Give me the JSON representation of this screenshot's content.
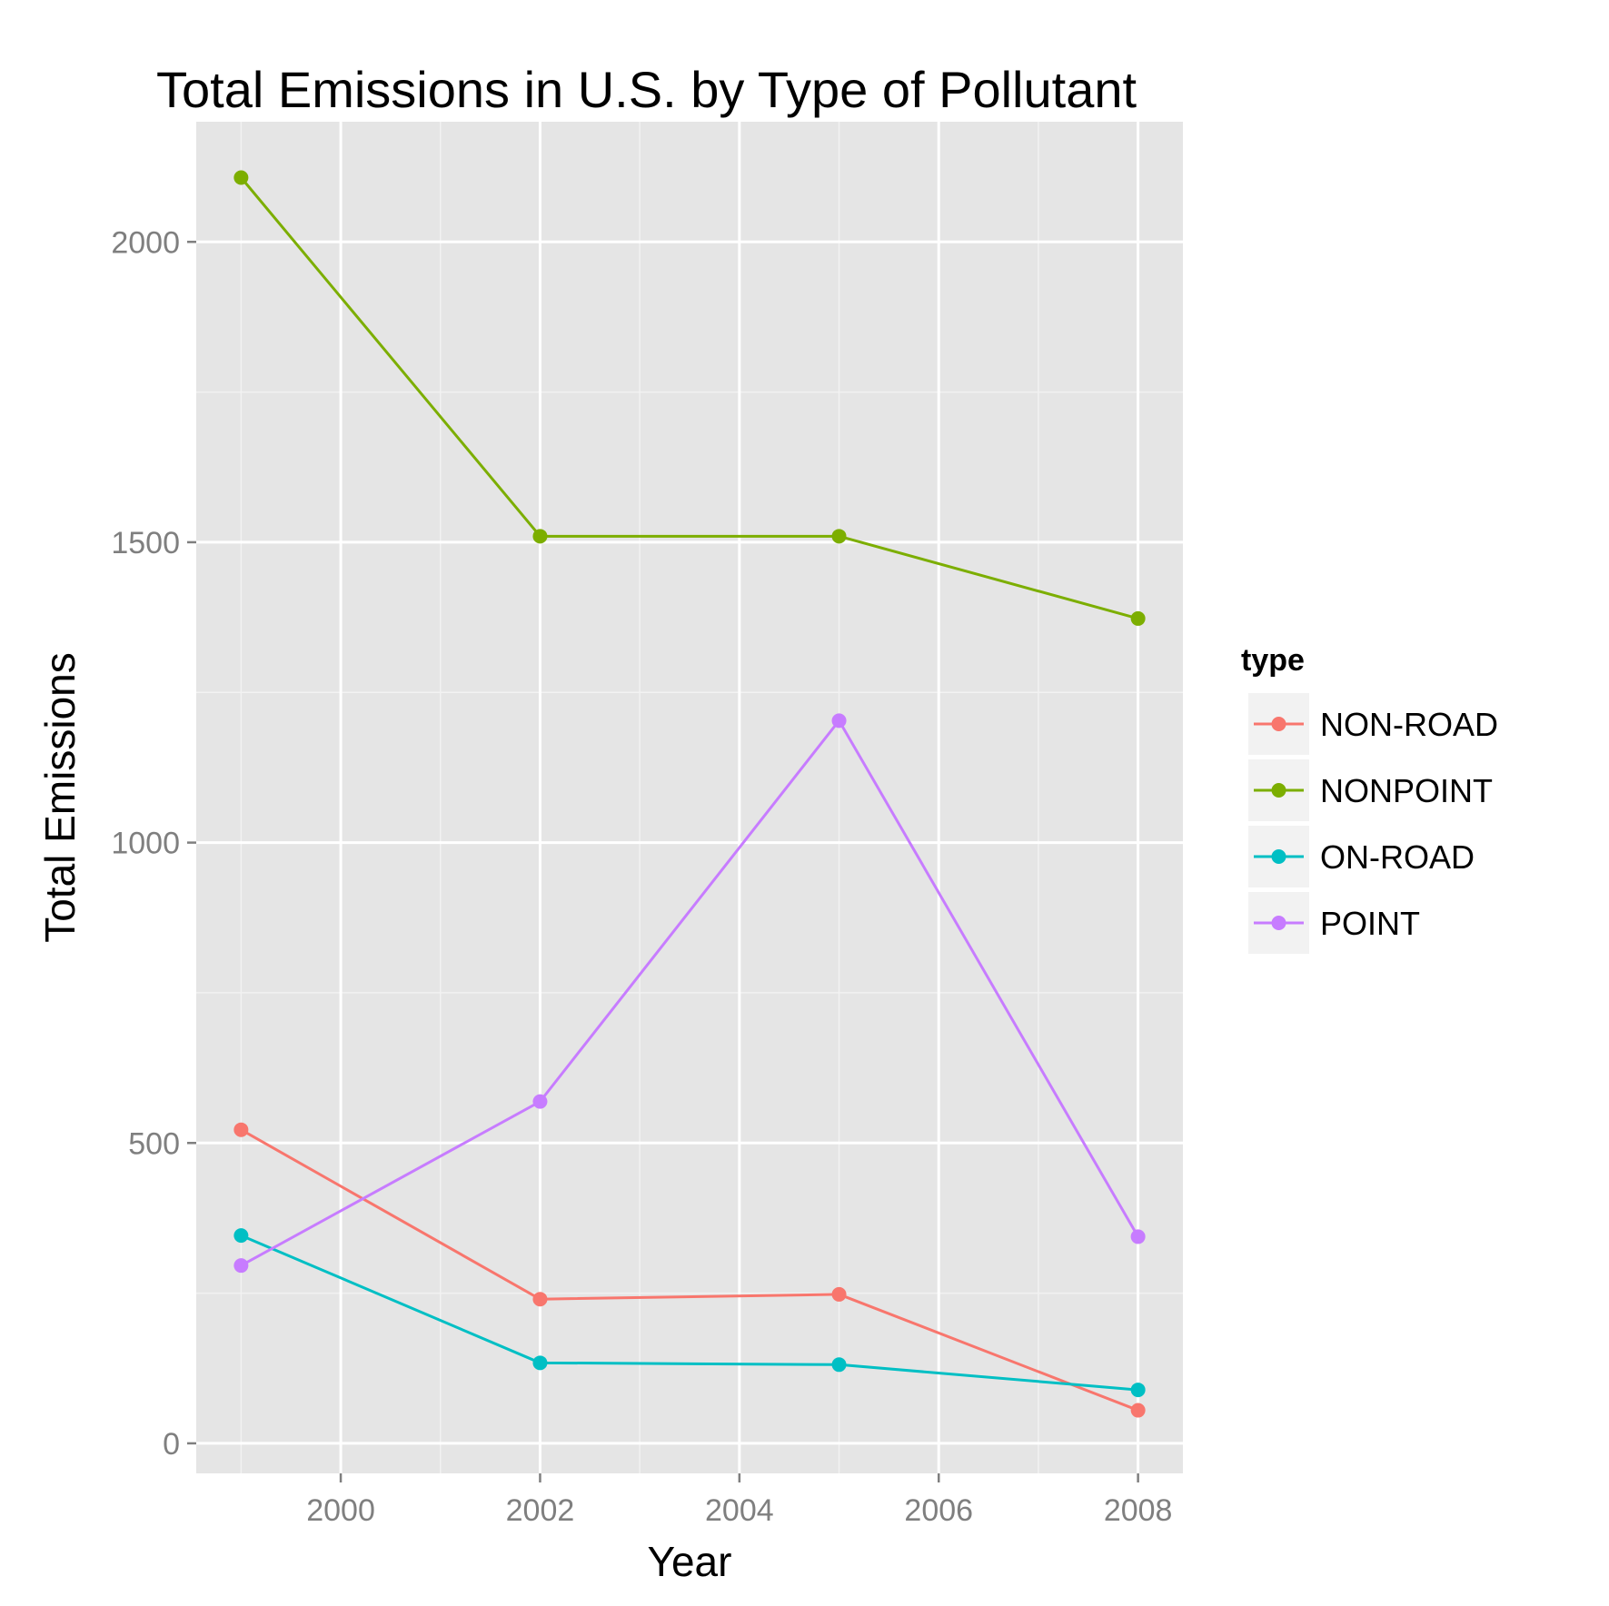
{
  "chart_data": {
    "type": "line",
    "title": "Total Emissions in U.S. by Type of Pollutant",
    "xlabel": "Year",
    "ylabel": "Total Emissions",
    "x": [
      1999,
      2002,
      2005,
      2008
    ],
    "xlim": [
      1998.55,
      2008.45
    ],
    "ylim": [
      -50,
      2200
    ],
    "x_ticks": [
      2000,
      2002,
      2004,
      2006,
      2008
    ],
    "x_tick_labels": [
      "2000",
      "2002",
      "2004",
      "2006",
      "2008"
    ],
    "y_ticks": [
      0,
      500,
      1000,
      1500,
      2000
    ],
    "y_tick_labels": [
      "0",
      "500",
      "1000",
      "1500",
      "2000"
    ],
    "grid": true,
    "legend_title": "type",
    "legend_position": "right",
    "series": [
      {
        "name": "NON-ROAD",
        "color": "#F8766D",
        "values": [
          522,
          240,
          248,
          55
        ]
      },
      {
        "name": "NONPOINT",
        "color": "#7CAE00",
        "values": [
          2107,
          1510,
          1510,
          1373
        ]
      },
      {
        "name": "ON-ROAD",
        "color": "#00BFC4",
        "values": [
          346,
          134,
          131,
          89
        ]
      },
      {
        "name": "POINT",
        "color": "#C77CFF",
        "values": [
          296,
          569,
          1203,
          344
        ]
      }
    ]
  }
}
